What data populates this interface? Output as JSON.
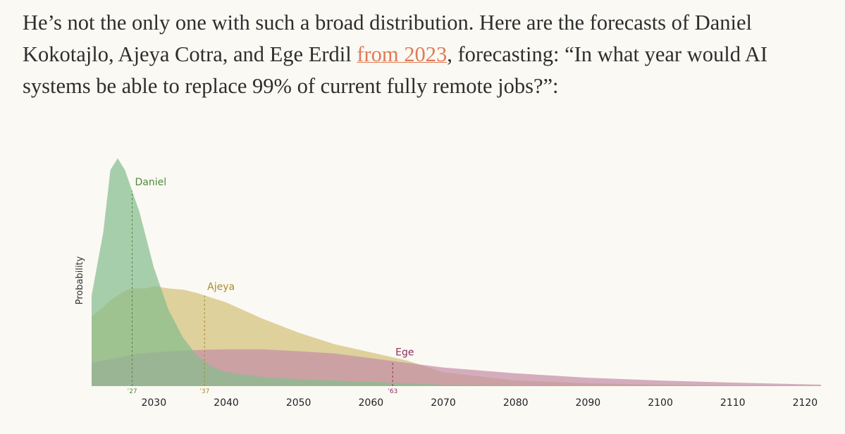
{
  "paragraph": {
    "before": "He’s not the only one with such a broad distribution. Here are the forecasts of Daniel Kokotajlo, Ajeya Cotra, and Ege Erdil ",
    "link": "from 2023",
    "after": ", forecasting: “In what year would AI systems be able to replace 99% of current fully remote jobs?”:"
  },
  "chart_data": {
    "type": "area",
    "y_label": "Probability",
    "x": [
      2021.4,
      2023,
      2024,
      2025,
      2026,
      2027,
      2028,
      2029,
      2030,
      2032,
      2034,
      2036,
      2038,
      2040,
      2045,
      2050,
      2055,
      2060,
      2065,
      2070,
      2080,
      2090,
      2100,
      2110,
      2122.2
    ],
    "xlim": [
      2021.4,
      2122.2
    ],
    "ylim": [
      0,
      1
    ],
    "xticks": [
      2030,
      2040,
      2050,
      2060,
      2070,
      2080,
      2090,
      2100,
      2110,
      2120
    ],
    "series": [
      {
        "name": "Ajeya",
        "color": "#d2c07a",
        "label_color": "#a88a2c",
        "median": {
          "value": 2037,
          "label": "’37"
        },
        "values": [
          0.3,
          0.34,
          0.37,
          0.39,
          0.41,
          0.42,
          0.42,
          0.42,
          0.43,
          0.42,
          0.415,
          0.4,
          0.38,
          0.36,
          0.29,
          0.23,
          0.18,
          0.145,
          0.11,
          0.06,
          0.024,
          0.012,
          0.006,
          0.003,
          0.001
        ]
      },
      {
        "name": "Ege",
        "color": "#c58fa8",
        "label_color": "#8a2e5e",
        "median": {
          "value": 2063,
          "label": "’63"
        },
        "values": [
          0.1,
          0.11,
          0.115,
          0.12,
          0.128,
          0.136,
          0.14,
          0.142,
          0.145,
          0.149,
          0.152,
          0.155,
          0.157,
          0.158,
          0.158,
          0.15,
          0.14,
          0.12,
          0.1,
          0.08,
          0.055,
          0.036,
          0.024,
          0.015,
          0.006
        ]
      },
      {
        "name": "Daniel",
        "color": "#86bd8e",
        "label_color": "#4e8a3c",
        "median": {
          "value": 2027,
          "label": "’27"
        },
        "values": [
          0.39,
          0.66,
          0.93,
          0.98,
          0.93,
          0.84,
          0.75,
          0.63,
          0.51,
          0.33,
          0.21,
          0.13,
          0.085,
          0.06,
          0.04,
          0.03,
          0.024,
          0.018,
          0.012,
          0.006,
          0.003,
          0.002,
          0.001,
          0,
          0
        ]
      }
    ]
  }
}
